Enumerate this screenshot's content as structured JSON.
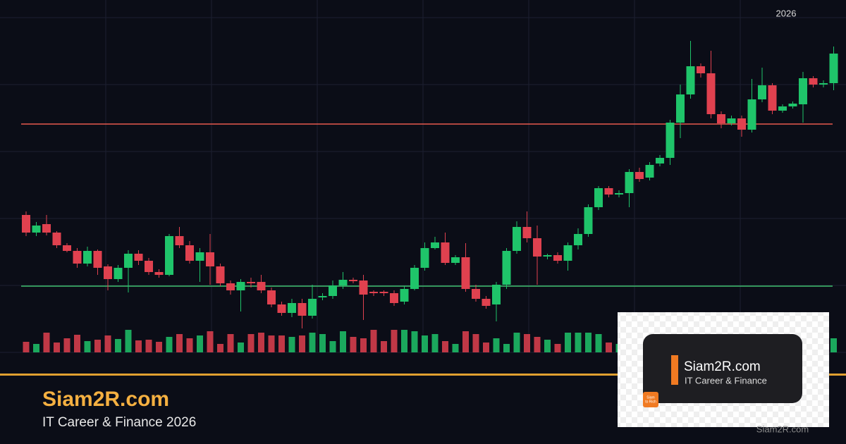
{
  "chart_data": {
    "type": "candlestick",
    "year_label": "2026",
    "ylim": [
      0,
      475
    ],
    "up_color": "#1fc46a",
    "down_color": "#e0414f",
    "open": [
      195,
      170,
      182,
      170,
      152,
      144,
      126,
      144,
      122,
      104,
      120,
      140,
      130,
      114,
      110,
      165,
      152,
      130,
      142,
      122,
      98,
      88,
      100,
      100,
      88,
      68,
      56,
      70,
      52,
      78,
      80,
      95,
      103,
      102,
      86,
      86,
      84,
      72,
      90,
      120,
      148,
      156,
      127,
      135,
      90,
      76,
      68,
      96,
      144,
      178,
      162,
      136,
      138,
      130,
      152,
      168,
      206,
      233,
      224,
      226,
      256,
      248,
      268,
      276,
      326,
      366,
      406,
      396,
      338,
      325,
      332,
      316,
      359,
      379,
      343,
      349,
      352,
      389,
      380,
      382
    ],
    "high": [
      200,
      185,
      195,
      172,
      155,
      148,
      150,
      146,
      125,
      124,
      145,
      145,
      134,
      118,
      168,
      178,
      158,
      148,
      168,
      126,
      102,
      104,
      106,
      110,
      92,
      72,
      76,
      76,
      96,
      84,
      102,
      114,
      106,
      110,
      88,
      88,
      88,
      94,
      124,
      156,
      164,
      170,
      138,
      155,
      96,
      80,
      100,
      148,
      186,
      200,
      180,
      140,
      142,
      156,
      176,
      210,
      236,
      236,
      230,
      260,
      262,
      270,
      280,
      330,
      380,
      442,
      410,
      428,
      342,
      336,
      336,
      388,
      404,
      382,
      352,
      356,
      398,
      392,
      386,
      434
    ],
    "low": [
      165,
      165,
      166,
      148,
      142,
      120,
      122,
      110,
      88,
      100,
      85,
      124,
      110,
      106,
      108,
      148,
      126,
      100,
      96,
      94,
      82,
      58,
      92,
      84,
      64,
      52,
      50,
      34,
      48,
      74,
      76,
      90,
      98,
      46,
      80,
      80,
      66,
      68,
      88,
      116,
      146,
      124,
      124,
      86,
      72,
      62,
      44,
      90,
      140,
      156,
      96,
      132,
      126,
      116,
      146,
      164,
      202,
      220,
      220,
      206,
      242,
      244,
      264,
      266,
      304,
      360,
      390,
      332,
      318,
      322,
      306,
      312,
      355,
      338,
      340,
      346,
      326,
      376,
      376,
      372
    ],
    "close": [
      170,
      180,
      170,
      152,
      144,
      126,
      144,
      120,
      104,
      120,
      140,
      130,
      114,
      110,
      165,
      152,
      130,
      142,
      122,
      98,
      88,
      100,
      98,
      88,
      68,
      56,
      70,
      52,
      76,
      80,
      95,
      103,
      101,
      82,
      84,
      84,
      70,
      90,
      120,
      148,
      156,
      127,
      135,
      90,
      76,
      66,
      96,
      144,
      178,
      162,
      136,
      138,
      130,
      152,
      168,
      206,
      233,
      224,
      226,
      256,
      246,
      266,
      276,
      326,
      366,
      406,
      396,
      338,
      325,
      332,
      316,
      359,
      379,
      343,
      349,
      353,
      389,
      380,
      382,
      424
    ],
    "volume": [
      15,
      12,
      28,
      14,
      20,
      25,
      16,
      18,
      24,
      19,
      32,
      17,
      18,
      15,
      22,
      26,
      20,
      24,
      30,
      12,
      26,
      14,
      26,
      28,
      24,
      24,
      22,
      24,
      28,
      26,
      16,
      30,
      22,
      20,
      32,
      16,
      32,
      32,
      30,
      24,
      26,
      16,
      12,
      30,
      26,
      14,
      20,
      12,
      28,
      26,
      22,
      18,
      12,
      28,
      28,
      28,
      26,
      14,
      12,
      30,
      30,
      26,
      22,
      28,
      26,
      30,
      24,
      20,
      26,
      28,
      26,
      30,
      24,
      22,
      28,
      30,
      26,
      24,
      30,
      20
    ],
    "levels": [
      {
        "value": 324,
        "color": "#e85a4f"
      },
      {
        "value": 94,
        "color": "#3fbf6f"
      }
    ]
  },
  "branding": {
    "title": "Siam2R.com",
    "subtitle": "IT Career & Finance 2026"
  },
  "logo": {
    "name": "Siam2R.com",
    "tagline": "IT Career & Finance",
    "icon_text": [
      "Siam",
      "to Rich"
    ]
  },
  "watermark": "Siam2R.com"
}
